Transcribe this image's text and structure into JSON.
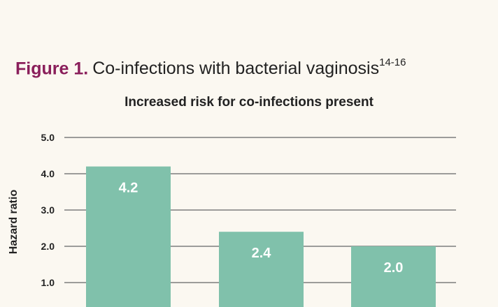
{
  "figure": {
    "label": "Figure 1.",
    "description": "Co-infections with bacterial vaginosis",
    "reference": "14-16"
  },
  "colors": {
    "figure_label": "#8a1f5b",
    "bar": "#80c1ab",
    "gridline": "#7d7d7d",
    "background": "#fbf8f1"
  },
  "chart_data": {
    "type": "bar",
    "title": "Increased risk for co-infections present",
    "ylabel": "Hazard ratio",
    "xlabel": "",
    "categories": [
      "",
      "",
      ""
    ],
    "values": [
      4.2,
      2.4,
      2.0
    ],
    "value_labels": [
      "4.2",
      "2.4",
      "2.0"
    ],
    "yticks": [
      1.0,
      2.0,
      3.0,
      4.0,
      5.0
    ],
    "ytick_labels": [
      "1.0",
      "2.0",
      "3.0",
      "4.0",
      "5.0"
    ],
    "ylim": [
      0,
      5
    ],
    "grid": true,
    "legend": "none"
  }
}
